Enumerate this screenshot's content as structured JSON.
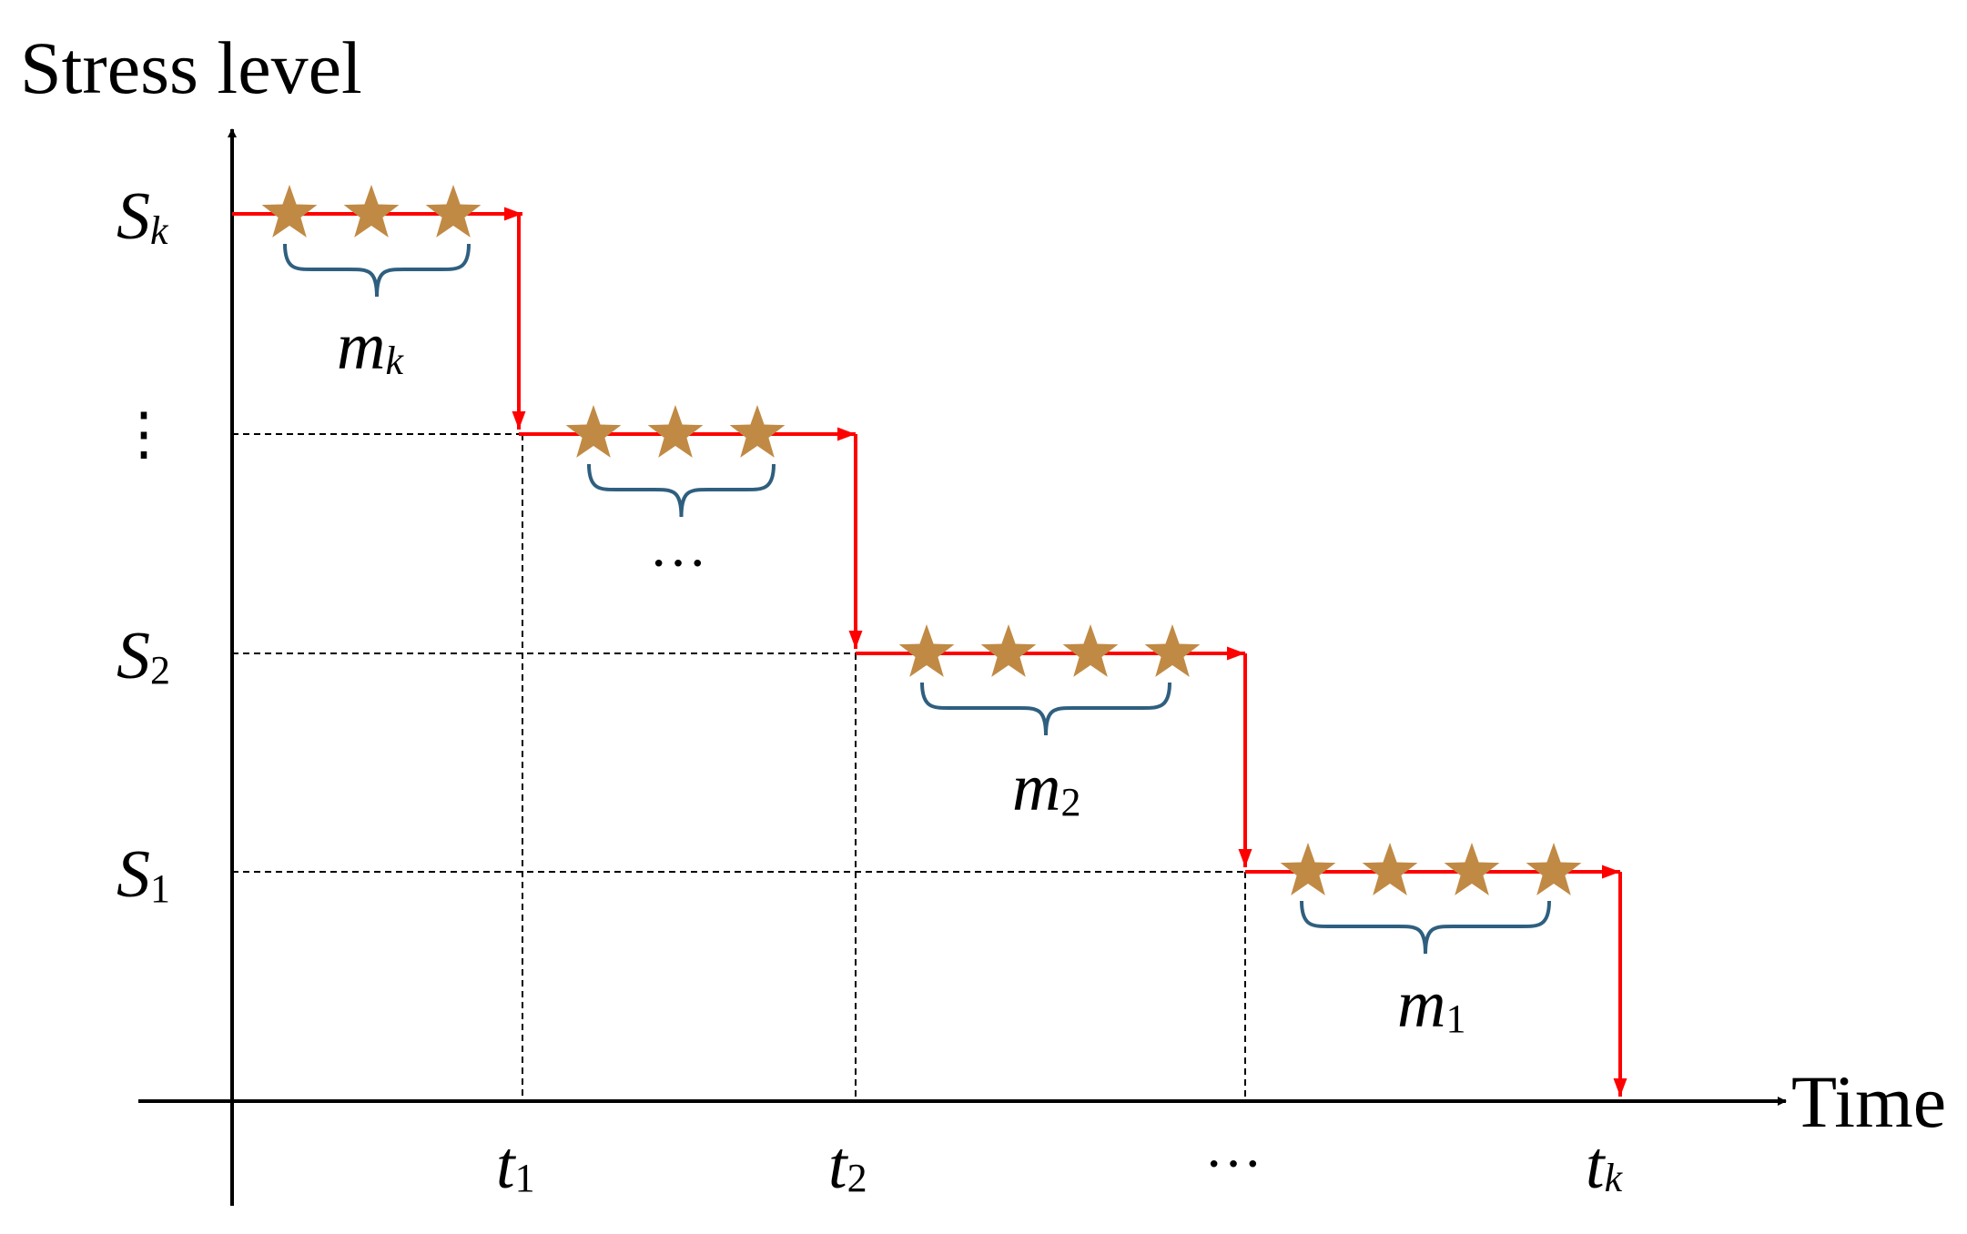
{
  "axis": {
    "y_label": "Stress level",
    "x_label": "Time"
  },
  "levels": [
    {
      "id": "sk",
      "base": "S",
      "sub": "k",
      "sub_italic": true
    },
    {
      "id": "dots",
      "text": "⋮"
    },
    {
      "id": "s2",
      "base": "S",
      "sub": "2",
      "sub_italic": false
    },
    {
      "id": "s1",
      "base": "S",
      "sub": "1",
      "sub_italic": false
    }
  ],
  "times": [
    {
      "id": "t1",
      "base": "t",
      "sub": "1",
      "sub_italic": false
    },
    {
      "id": "t2",
      "base": "t",
      "sub": "2",
      "sub_italic": false
    },
    {
      "id": "dots",
      "text": "···"
    },
    {
      "id": "tk",
      "base": "t",
      "sub": "k",
      "sub_italic": true
    }
  ],
  "groups": [
    {
      "id": "stage-k",
      "stars": 3,
      "base": "m",
      "sub": "k",
      "sub_italic": true
    },
    {
      "id": "stage-mid",
      "stars": 3,
      "text": "···"
    },
    {
      "id": "stage-2",
      "stars": 4,
      "base": "m",
      "sub": "2",
      "sub_italic": false
    },
    {
      "id": "stage-1",
      "stars": 4,
      "base": "m",
      "sub": "1",
      "sub_italic": false
    }
  ],
  "colors": {
    "axis": "#000000",
    "path": "#ff0000",
    "star": "#c08a45",
    "brace": "#2f5f7f",
    "grid": "#000000"
  }
}
